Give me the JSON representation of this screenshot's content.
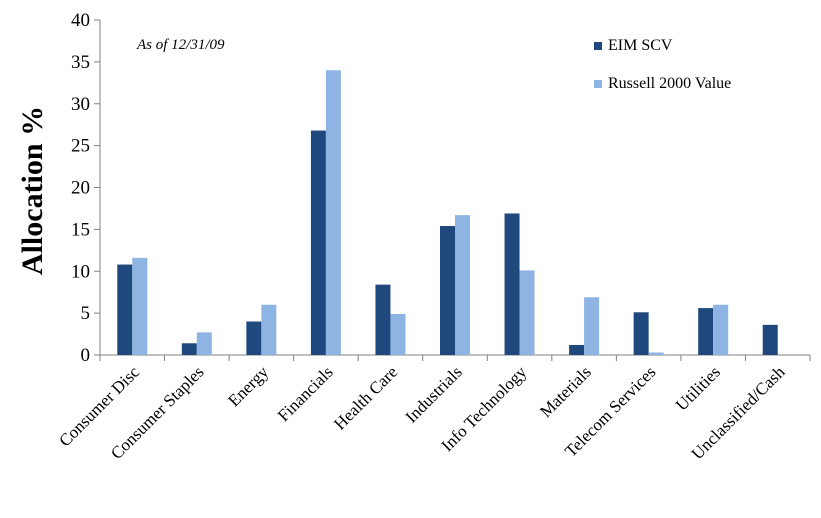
{
  "chart_data": {
    "type": "bar",
    "ylabel": "Allocation %",
    "xlabel": "",
    "annotation": "As of 12/31/09",
    "ylim": [
      0,
      40
    ],
    "yticks": [
      0,
      5,
      10,
      15,
      20,
      25,
      30,
      35,
      40
    ],
    "grid": false,
    "legend_position": "top-right",
    "categories": [
      "Consumer Disc",
      "Consumer Staples",
      "Energy",
      "Financials",
      "Health Care",
      "Industrials",
      "Info Technology",
      "Materials",
      "Telecom Services",
      "Utilities",
      "Unclassified/Cash"
    ],
    "series": [
      {
        "name": "EIM SCV",
        "color": "#1f497d",
        "values": [
          10.8,
          1.4,
          4.0,
          26.8,
          8.4,
          15.4,
          16.9,
          1.2,
          5.1,
          5.6,
          3.6
        ]
      },
      {
        "name": "Russell 2000 Value",
        "color": "#8db4e2",
        "values": [
          11.6,
          2.7,
          6.0,
          34.0,
          4.9,
          16.7,
          10.1,
          6.9,
          0.3,
          6.0,
          0.0
        ]
      }
    ]
  }
}
